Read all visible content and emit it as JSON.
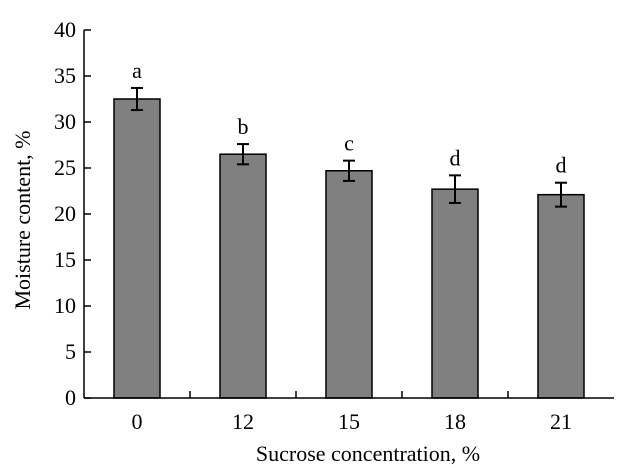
{
  "chart_data": {
    "type": "bar",
    "title": "",
    "xlabel": "Sucrose concentration, %",
    "ylabel": "Moisture content, %",
    "categories": [
      "0",
      "12",
      "15",
      "18",
      "21"
    ],
    "values": [
      32.5,
      26.5,
      24.7,
      22.7,
      22.1
    ],
    "errors": [
      1.2,
      1.1,
      1.1,
      1.5,
      1.3
    ],
    "significance_labels": [
      "a",
      "b",
      "c",
      "d",
      "d"
    ],
    "ylim": [
      0,
      40
    ],
    "yticks": [
      0,
      5,
      10,
      15,
      20,
      25,
      30,
      35,
      40
    ],
    "grid": false,
    "legend": "none",
    "colors": {
      "bar_fill": "#808080",
      "bar_stroke": "#000000",
      "axis": "#000000"
    }
  }
}
